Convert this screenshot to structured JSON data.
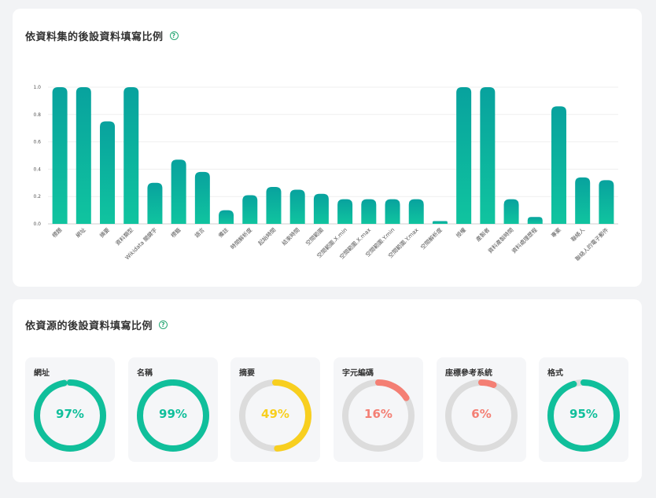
{
  "dataset_section": {
    "title": "依資料集的後設資料填寫比例",
    "help_icon": "?"
  },
  "source_section": {
    "title": "依資源的後設資料填寫比例",
    "help_icon": "?"
  },
  "chart_data": [
    {
      "type": "bar",
      "categories": [
        "標題",
        "網址",
        "摘要",
        "資料類型",
        "Wikidata 關鍵字",
        "標籤",
        "語言",
        "備註",
        "時間解析度",
        "起始時間",
        "結束時間",
        "空間範圍",
        "空間範圍.X.min",
        "空間範圍.X.max",
        "空間範圍.Y.min",
        "空間範圍.Y.max",
        "空間解析度",
        "授權",
        "產製者",
        "資料產製時間",
        "資料處理歷程",
        "專案",
        "聯絡人",
        "聯絡人的電子郵件"
      ],
      "values": [
        1.0,
        1.0,
        0.75,
        1.0,
        0.3,
        0.47,
        0.38,
        0.1,
        0.21,
        0.27,
        0.25,
        0.22,
        0.18,
        0.18,
        0.18,
        0.18,
        0.02,
        1.0,
        1.0,
        0.18,
        0.05,
        0.86,
        0.34,
        0.32
      ],
      "yticks": [
        "0.0",
        "0.2",
        "0.4",
        "0.6",
        "0.8",
        "1.0"
      ],
      "ylim": [
        0,
        1.0
      ],
      "colors": {
        "top": "#08a29e",
        "bottom": "#10c49f"
      },
      "grid": true
    },
    {
      "type": "pie",
      "items": [
        {
          "label": "網址",
          "value": 97,
          "display": "97%",
          "color": "#10bf9b"
        },
        {
          "label": "名稱",
          "value": 99,
          "display": "99%",
          "color": "#10bf9b"
        },
        {
          "label": "摘要",
          "value": 49,
          "display": "49%",
          "color": "#f8cf1f"
        },
        {
          "label": "字元編碼",
          "value": 16,
          "display": "16%",
          "color": "#f47f74"
        },
        {
          "label": "座標參考系統",
          "value": 6,
          "display": "6%",
          "color": "#f47f74"
        },
        {
          "label": "格式",
          "value": 95,
          "display": "95%",
          "color": "#10bf9b"
        }
      ],
      "track_color": "#dcdcdc"
    }
  ]
}
